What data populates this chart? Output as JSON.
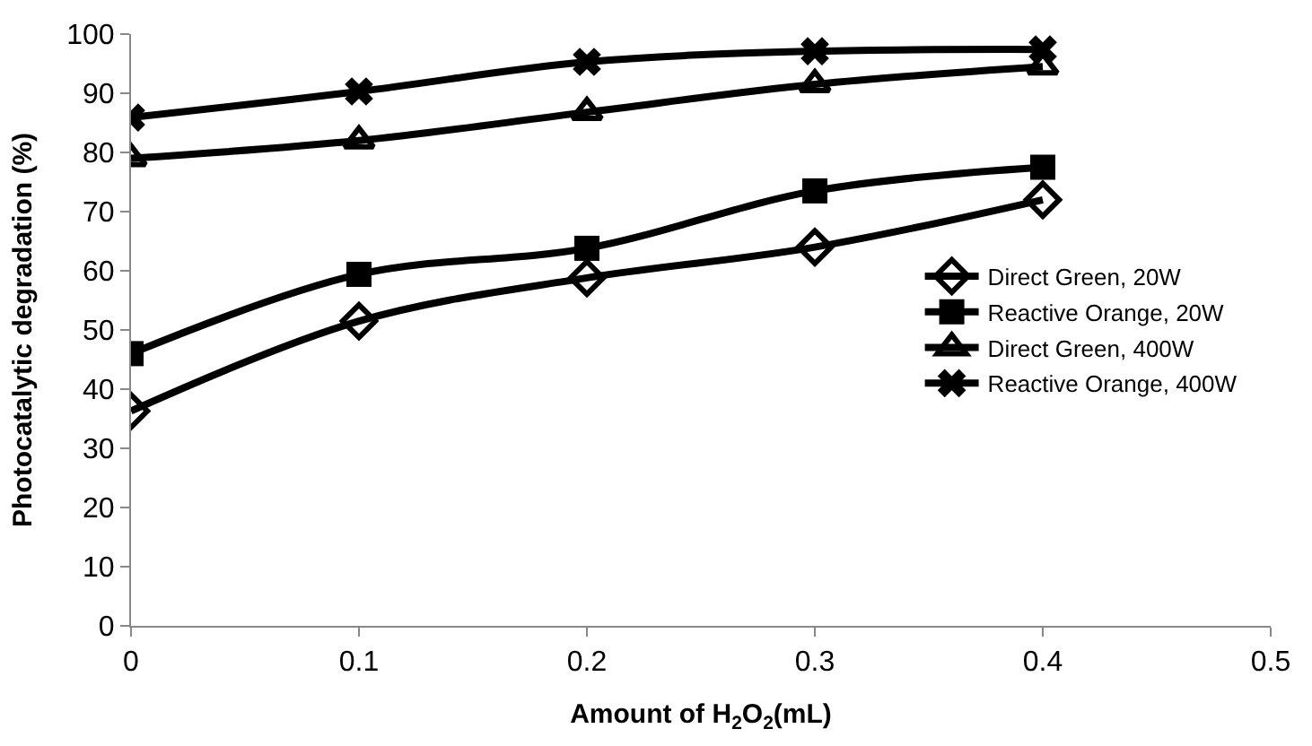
{
  "chart_data": {
    "type": "line",
    "xlabel": "Amount of H$_{2}$O$_{2}$(mL)",
    "ylabel": "Photocatalytic degradation (%)",
    "x": [
      0,
      0.1,
      0.2,
      0.3,
      0.4
    ],
    "series": [
      {
        "name": "Direct Green, 20W",
        "color": "#000000",
        "marker": "diamond",
        "values": [
          36.3,
          51.5,
          58.8,
          64,
          72
        ]
      },
      {
        "name": "Reactive Orange, 20W",
        "color": "#000000",
        "marker": "square",
        "values": [
          46,
          59.4,
          63.8,
          73.5,
          77.5
        ]
      },
      {
        "name": "Direct Green, 400W",
        "color": "#000000",
        "marker": "triangle",
        "values": [
          79,
          82,
          86.8,
          91.5,
          94.5
        ]
      },
      {
        "name": "Reactive Orange, 400W",
        "color": "#000000",
        "marker": "cross",
        "values": [
          85.9,
          90.3,
          95.3,
          97.1,
          97.4
        ]
      }
    ],
    "xlim": [
      0,
      0.5
    ],
    "xticks": [
      0,
      0.1,
      0.2,
      0.3,
      0.4,
      0.5
    ],
    "ylim": [
      0,
      100
    ],
    "yticks": [
      0,
      10,
      20,
      30,
      40,
      50,
      60,
      70,
      80,
      90,
      100
    ],
    "legend": "right",
    "line_style": "solid"
  }
}
